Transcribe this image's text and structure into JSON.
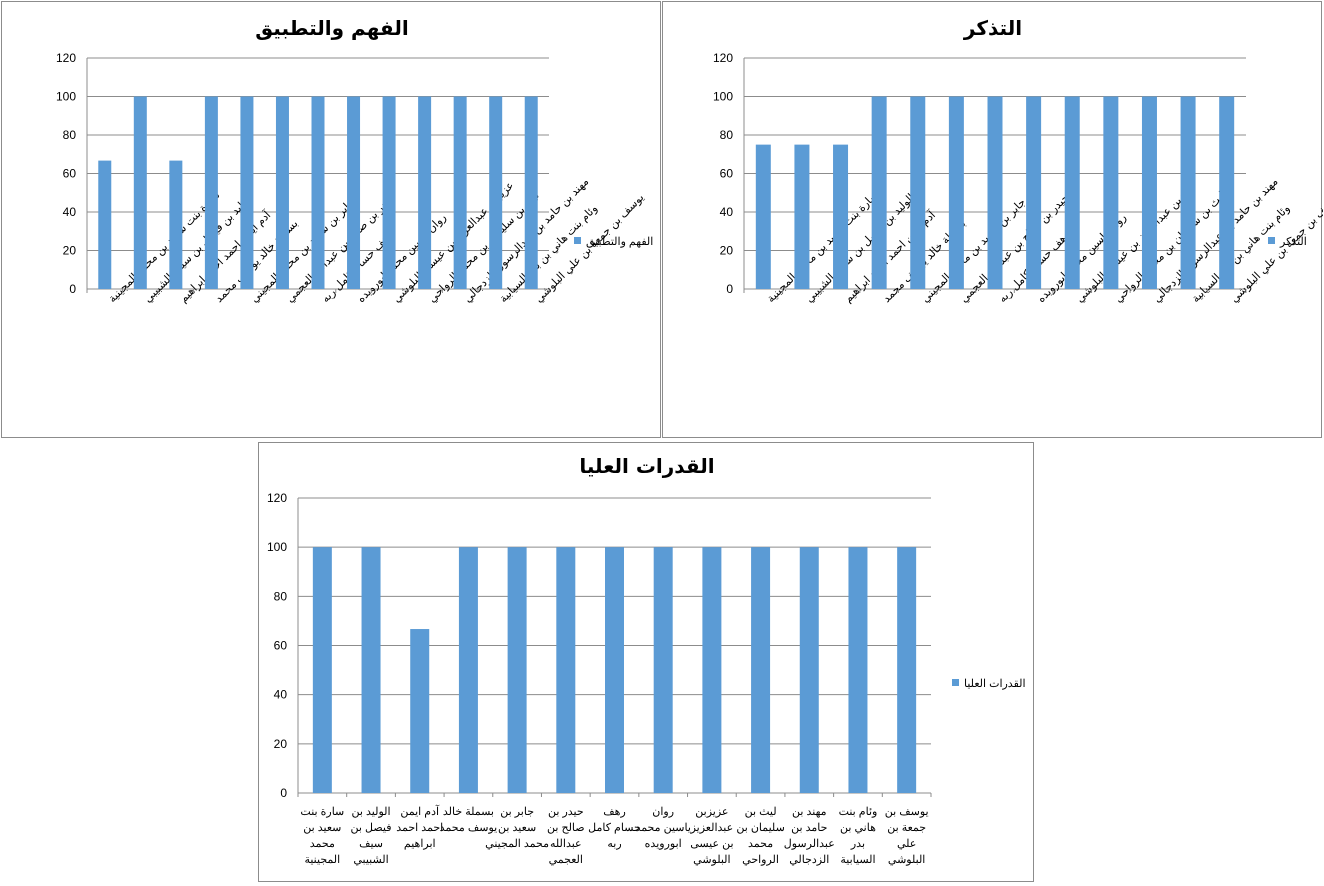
{
  "chart_data": [
    {
      "type": "bar",
      "title": "الفهم والتطبيق",
      "ylim": [
        0,
        120
      ],
      "yticks": [
        0,
        20,
        40,
        60,
        80,
        100,
        120
      ],
      "grid": true,
      "legend_position": "right",
      "categories": [
        "سارة بنت سعيد بن محمد المجينية",
        "الوليد بن فيصل بن سيف الشبيبي",
        "آدم ايمن احمد احمد ابراهيم",
        "بسملة خالد يوسف محمد",
        "جابر بن سعيد بن محمد المجيني",
        "حيدر بن صالح بن عبدالله العجمي",
        "رهف حسام كامل ربه",
        "روان ياسين محمد ابورويده",
        "عزيزبن عبدالعزيز بن عيسى البلوشي",
        "ليث بن سليمان بن محمد الرواحي",
        "مهند بن حامد بن عبدالرسول الزدجالي",
        "وئام بنت هاني بن بدر السيابية",
        "يوسف بن جمعة بن علي البلوشي"
      ],
      "series": [
        {
          "name": "الفهم والتطبيق",
          "color": "#5b9bd5",
          "values": [
            66.7,
            100,
            66.7,
            100,
            100,
            100,
            100,
            100,
            100,
            100,
            100,
            100,
            100
          ]
        }
      ]
    },
    {
      "type": "bar",
      "title": "التذكر",
      "ylim": [
        0,
        120
      ],
      "yticks": [
        0,
        20,
        40,
        60,
        80,
        100,
        120
      ],
      "grid": true,
      "legend_position": "right",
      "categories": [
        "سارة بنت سعيد بن محمد المجينية",
        "الوليد بن فيصل بن سيف الشبيبي",
        "آدم ايمن احمد احمد ابراهيم",
        "بسملة خالد يوسف محمد",
        "جابر بن سعيد بن محمد المجيني",
        "حيدر بن صالح بن عبدالله العجمي",
        "رهف حسام كامل ربه",
        "روان ياسين محمد ابورويده",
        "عزيزبن عبدالعزيز بن عيسى البلوشي",
        "ليث بن سليمان بن محمد الرواحي",
        "مهند بن حامد بن عبدالرسول الزدجالي",
        "وئام بنت هاني بن بدر السيابية",
        "يوسف بن جمعة بن علي البلوشي"
      ],
      "series": [
        {
          "name": "التذكر",
          "color": "#5b9bd5",
          "values": [
            75,
            75,
            75,
            100,
            100,
            100,
            100,
            100,
            100,
            100,
            100,
            100,
            100
          ]
        }
      ]
    },
    {
      "type": "bar",
      "title": "القدرات العليا",
      "ylim": [
        0,
        120
      ],
      "yticks": [
        0,
        20,
        40,
        60,
        80,
        100,
        120
      ],
      "grid": true,
      "legend_position": "right",
      "categories": [
        "سارة بنت سعيد بن محمد المجينية",
        "الوليد بن فيصل بن سيف الشبيبي",
        "آدم ايمن احمد احمد ابراهيم",
        "بسملة خالد يوسف محمد",
        "جابر بن سعيد بن محمد المجيني",
        "حيدر بن صالح بن عبدالله العجمي",
        "رهف حسام كامل ربه",
        "روان ياسين محمد ابورويده",
        "عزيزبن عبدالعزيز بن عيسى البلوشي",
        "ليث بن سليمان بن محمد الرواحي",
        "مهند بن حامد بن عبدالرسول الزدجالي",
        "وئام بنت هاني بن بدر السيابية",
        "يوسف بن جمعة بن علي البلوشي"
      ],
      "category_lines": [
        [
          "سارة بنت",
          "سعيد بن",
          "محمد",
          "المجينية"
        ],
        [
          "الوليد بن",
          "فيصل بن",
          "سيف",
          "الشبيبي"
        ],
        [
          "آدم ايمن",
          "احمد احمد",
          "ابراهيم"
        ],
        [
          "بسملة خالد",
          "يوسف محمد"
        ],
        [
          "جابر بن",
          "سعيد بن",
          "محمد المجيني"
        ],
        [
          "حيدر بن",
          "صالح بن",
          "عبدالله",
          "العجمي"
        ],
        [
          "رهف",
          "حسام كامل",
          "ربه"
        ],
        [
          "روان",
          "ياسين محمد",
          "ابورويده"
        ],
        [
          "عزيزبن",
          "عبدالعزيز",
          "بن عيسى",
          "البلوشي"
        ],
        [
          "ليث بن",
          "سليمان بن",
          "محمد",
          "الرواحي"
        ],
        [
          "مهند بن",
          "حامد بن",
          "عبدالرسول",
          "الزدجالي"
        ],
        [
          "وئام بنت",
          "هاني بن",
          "بدر",
          "السيابية"
        ],
        [
          "يوسف بن",
          "جمعة بن",
          "علي",
          "البلوشي"
        ]
      ],
      "series": [
        {
          "name": "القدرات العليا",
          "color": "#5b9bd5",
          "values": [
            100,
            100,
            66.7,
            100,
            100,
            100,
            100,
            100,
            100,
            100,
            100,
            100,
            100
          ]
        }
      ]
    }
  ]
}
